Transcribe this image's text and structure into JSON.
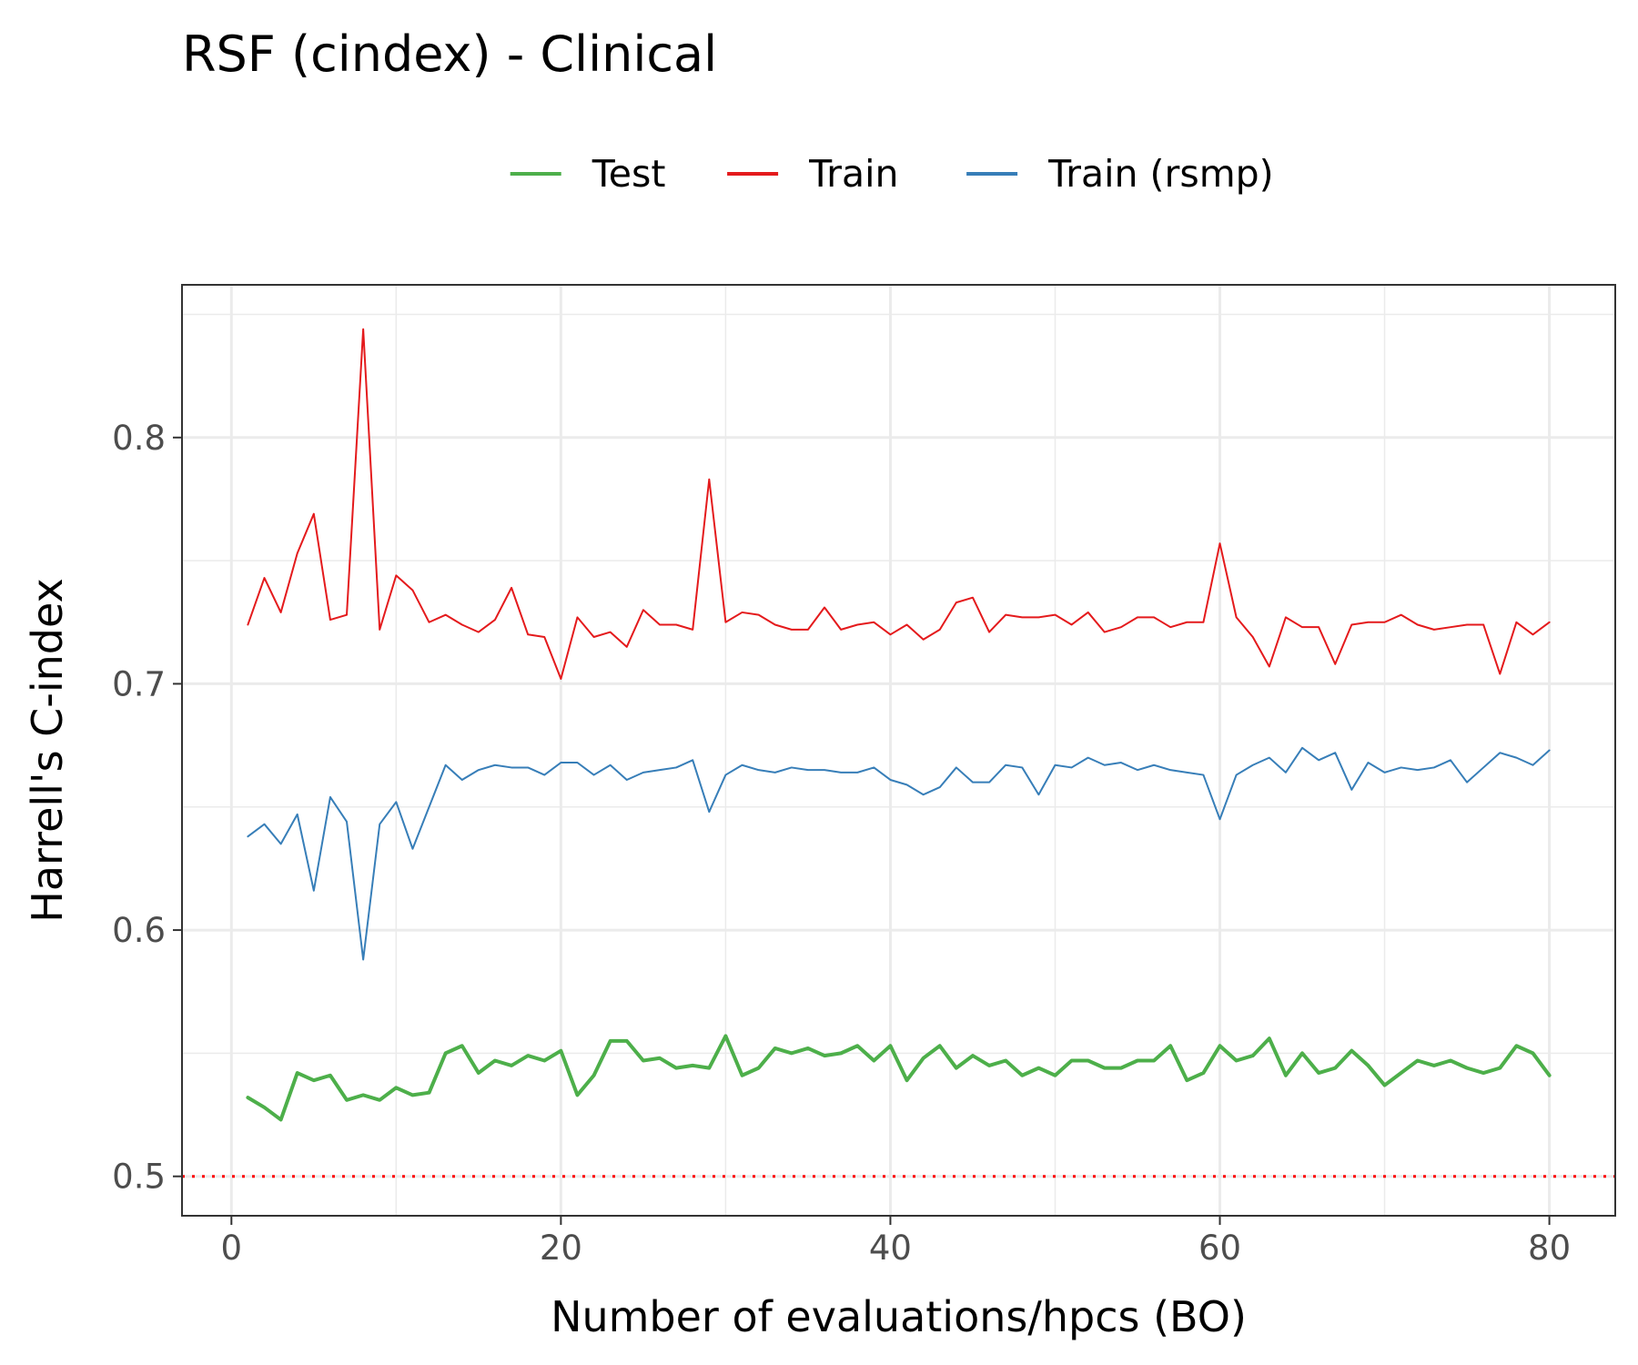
{
  "chart_data": {
    "type": "line",
    "title": "RSF (cindex) - Clinical",
    "xlabel": "Number of evaluations/hpcs (BO)",
    "ylabel": "Harrell's C-index",
    "xlim": [
      -3,
      84
    ],
    "ylim": [
      0.484,
      0.862
    ],
    "x_ticks": [
      0,
      20,
      40,
      60,
      80
    ],
    "x_tick_labels": [
      "0",
      "20",
      "40",
      "60",
      "80"
    ],
    "y_ticks": [
      0.5,
      0.6,
      0.7,
      0.8
    ],
    "y_tick_labels": [
      "0.5",
      "0.6",
      "0.7",
      "0.8"
    ],
    "x_minor_ticks": [
      10,
      30,
      50,
      70
    ],
    "y_minor_ticks": [
      0.55,
      0.65,
      0.75,
      0.85
    ],
    "grid": true,
    "legend_position": "top",
    "reference_line": {
      "y": 0.5,
      "style": "dotted",
      "color": "#ff0000"
    },
    "x": [
      1,
      2,
      3,
      4,
      5,
      6,
      7,
      8,
      9,
      10,
      11,
      12,
      13,
      14,
      15,
      16,
      17,
      18,
      19,
      20,
      21,
      22,
      23,
      24,
      25,
      26,
      27,
      28,
      29,
      30,
      31,
      32,
      33,
      34,
      35,
      36,
      37,
      38,
      39,
      40,
      41,
      42,
      43,
      44,
      45,
      46,
      47,
      48,
      49,
      50,
      51,
      52,
      53,
      54,
      55,
      56,
      57,
      58,
      59,
      60,
      61,
      62,
      63,
      64,
      65,
      66,
      67,
      68,
      69,
      70,
      71,
      72,
      73,
      74,
      75,
      76,
      77,
      78,
      79,
      80
    ],
    "series": [
      {
        "name": "Test",
        "color": "#4daf4a",
        "width": 4,
        "values": [
          0.532,
          0.528,
          0.523,
          0.542,
          0.539,
          0.541,
          0.531,
          0.533,
          0.531,
          0.536,
          0.533,
          0.534,
          0.55,
          0.553,
          0.542,
          0.547,
          0.545,
          0.549,
          0.547,
          0.551,
          0.533,
          0.541,
          0.555,
          0.555,
          0.547,
          0.548,
          0.544,
          0.545,
          0.544,
          0.557,
          0.541,
          0.544,
          0.552,
          0.55,
          0.552,
          0.549,
          0.55,
          0.553,
          0.547,
          0.553,
          0.539,
          0.548,
          0.553,
          0.544,
          0.549,
          0.545,
          0.547,
          0.541,
          0.544,
          0.541,
          0.547,
          0.547,
          0.544,
          0.544,
          0.547,
          0.547,
          0.553,
          0.539,
          0.542,
          0.553,
          0.547,
          0.549,
          0.556,
          0.541,
          0.55,
          0.542,
          0.544,
          0.551,
          0.545,
          0.537,
          0.542,
          0.547,
          0.545,
          0.547,
          0.544,
          0.542,
          0.544,
          0.553,
          0.55,
          0.541
        ]
      },
      {
        "name": "Train",
        "color": "#e41a1c",
        "width": 2,
        "values": [
          0.724,
          0.743,
          0.729,
          0.753,
          0.769,
          0.726,
          0.728,
          0.844,
          0.722,
          0.744,
          0.738,
          0.725,
          0.728,
          0.724,
          0.721,
          0.726,
          0.739,
          0.72,
          0.719,
          0.702,
          0.727,
          0.719,
          0.721,
          0.715,
          0.73,
          0.724,
          0.724,
          0.722,
          0.783,
          0.725,
          0.729,
          0.728,
          0.724,
          0.722,
          0.722,
          0.731,
          0.722,
          0.724,
          0.725,
          0.72,
          0.724,
          0.718,
          0.722,
          0.733,
          0.735,
          0.721,
          0.728,
          0.727,
          0.727,
          0.728,
          0.724,
          0.729,
          0.721,
          0.723,
          0.727,
          0.727,
          0.723,
          0.725,
          0.725,
          0.757,
          0.727,
          0.719,
          0.707,
          0.727,
          0.723,
          0.723,
          0.708,
          0.724,
          0.725,
          0.725,
          0.728,
          0.724,
          0.722,
          0.723,
          0.724,
          0.724,
          0.704,
          0.725,
          0.72,
          0.725
        ]
      },
      {
        "name": "Train (rsmp)",
        "color": "#377eb8",
        "width": 2,
        "values": [
          0.638,
          0.643,
          0.635,
          0.647,
          0.616,
          0.654,
          0.644,
          0.588,
          0.643,
          0.652,
          0.633,
          0.65,
          0.667,
          0.661,
          0.665,
          0.667,
          0.666,
          0.666,
          0.663,
          0.668,
          0.668,
          0.663,
          0.667,
          0.661,
          0.664,
          0.665,
          0.666,
          0.669,
          0.648,
          0.663,
          0.667,
          0.665,
          0.664,
          0.666,
          0.665,
          0.665,
          0.664,
          0.664,
          0.666,
          0.661,
          0.659,
          0.655,
          0.658,
          0.666,
          0.66,
          0.66,
          0.667,
          0.666,
          0.655,
          0.667,
          0.666,
          0.67,
          0.667,
          0.668,
          0.665,
          0.667,
          0.665,
          0.664,
          0.663,
          0.645,
          0.663,
          0.667,
          0.67,
          0.664,
          0.674,
          0.669,
          0.672,
          0.657,
          0.668,
          0.664,
          0.666,
          0.665,
          0.666,
          0.669,
          0.66,
          0.666,
          0.672,
          0.67,
          0.667,
          0.673
        ]
      }
    ]
  }
}
